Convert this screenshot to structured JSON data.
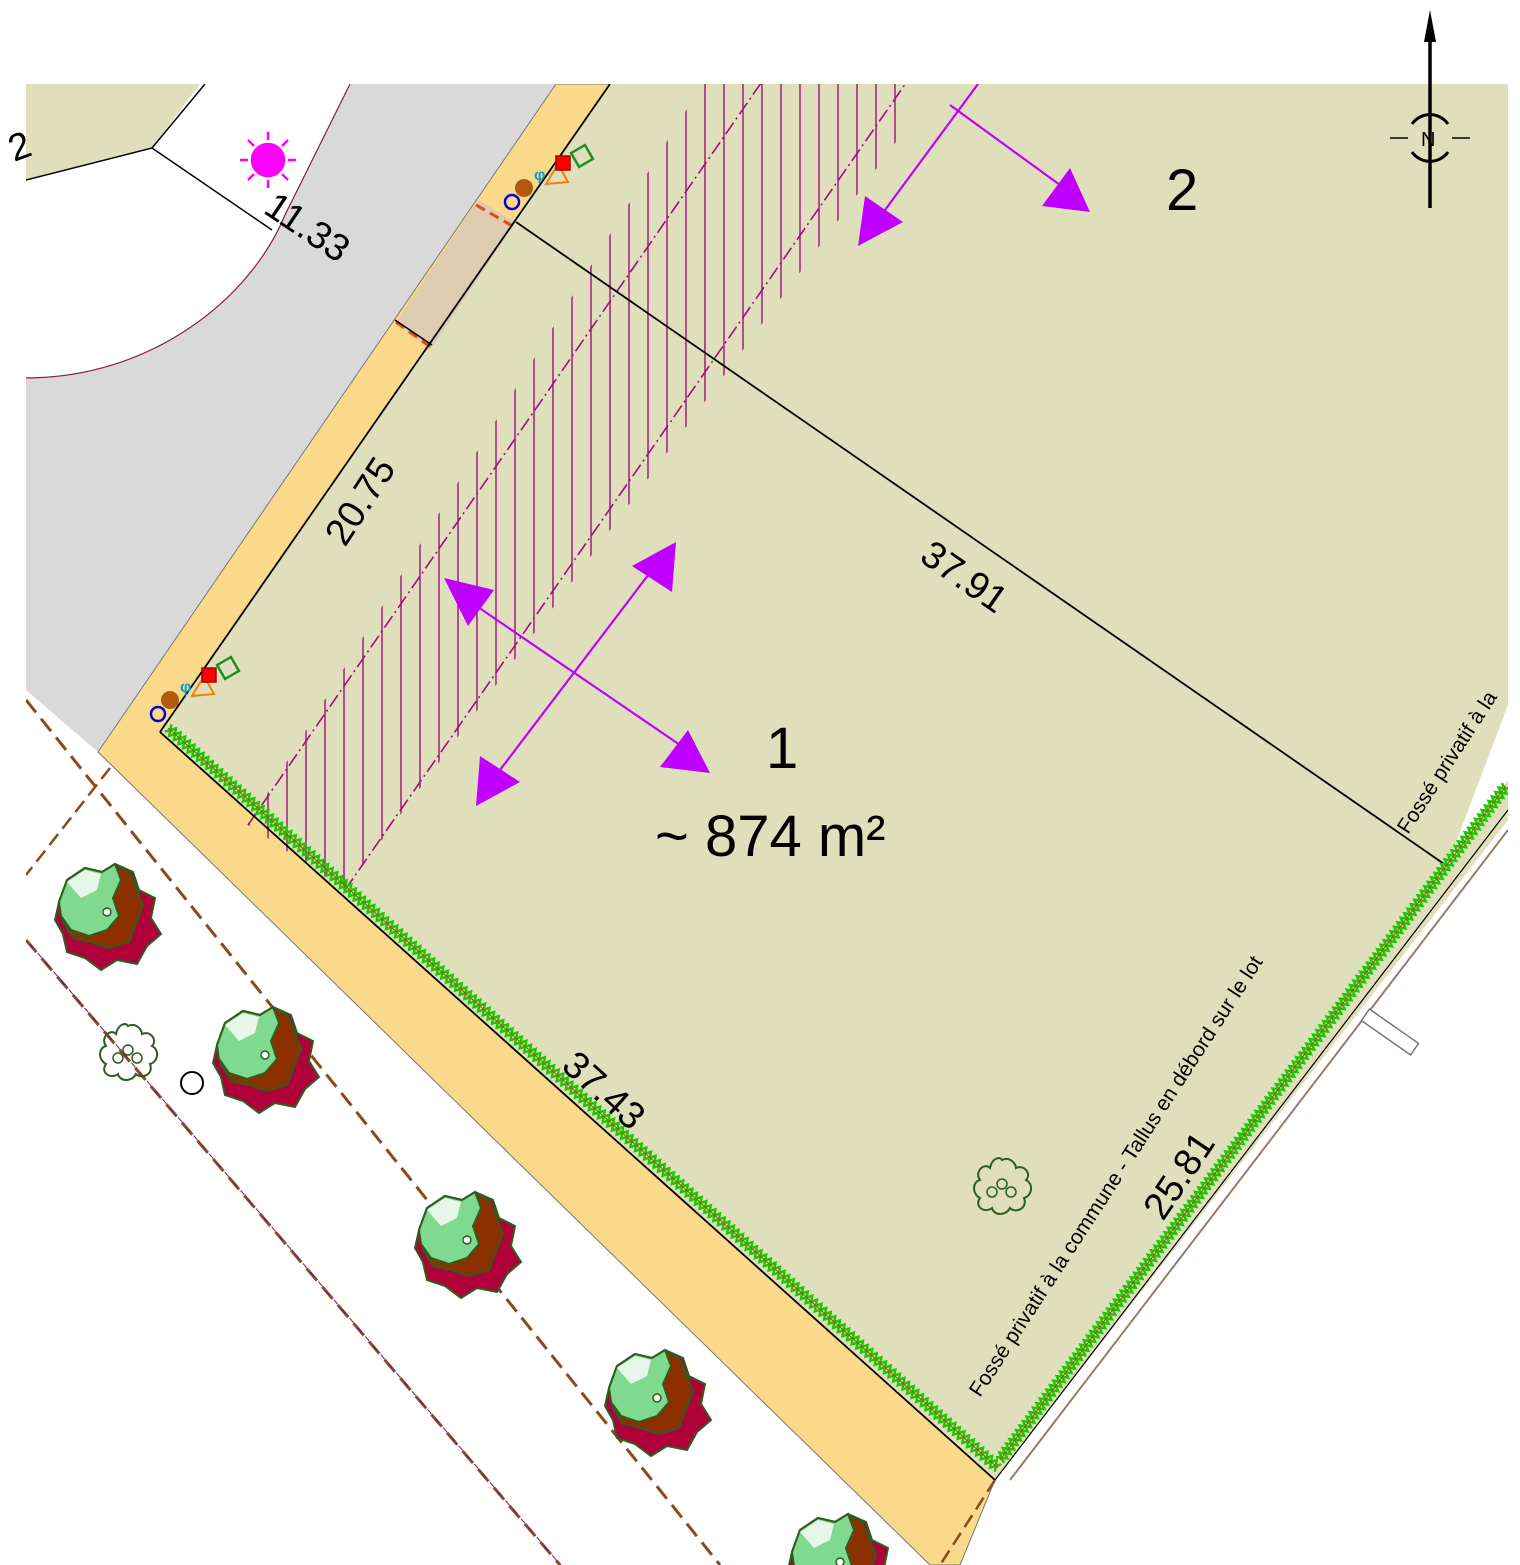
{
  "lots": [
    {
      "number": "1",
      "area": "~ 874 m²"
    },
    {
      "number": "2"
    }
  ],
  "partial_lot_number": "2",
  "dimensions": {
    "top_left": "11.33",
    "front": "20.75",
    "shared_boundary": "37.91",
    "bottom_left": "37.43",
    "back": "25.81"
  },
  "notes": {
    "ditch_main": "Fossé privatif à la commune - Tallus en débord sur le lot",
    "ditch_partial": "Fossé privatif à la"
  },
  "north_arrow": {
    "label": "N",
    "icon": "north-arrow-icon"
  },
  "colors": {
    "lot_fill": "#dfe0bb",
    "road": "#d9d9d9",
    "sidewalk": "#fbd98a",
    "driveway": "#ddccb0",
    "access_arrow": "#c000ff",
    "hatch": "#9e0f7a",
    "hedge": "#1ec800",
    "streetlight": "#ff00ff"
  }
}
